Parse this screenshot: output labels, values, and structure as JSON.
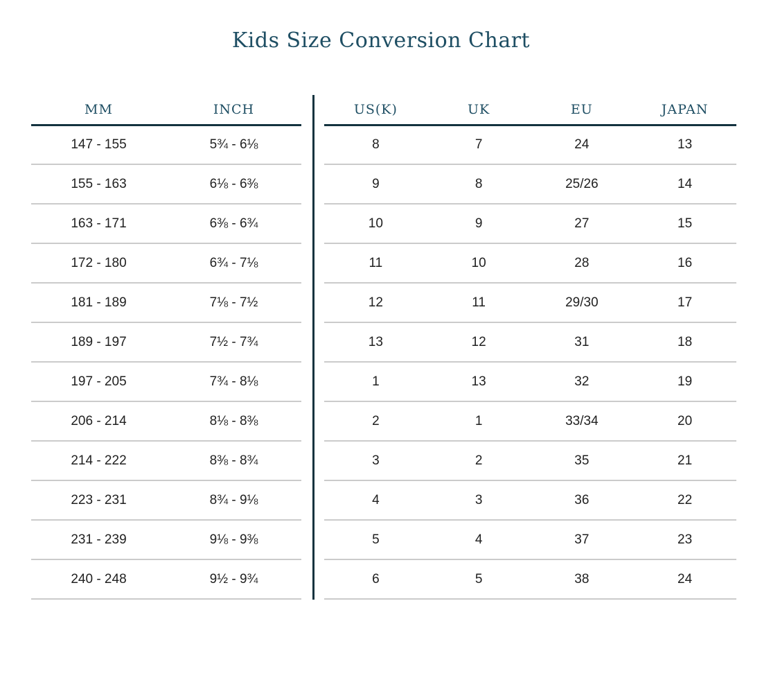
{
  "title": "Kids Size Conversion Chart",
  "colors": {
    "heading": "#1E4E63",
    "rule": "#14333F",
    "separator": "#CBCBCB",
    "text": "#212121",
    "background": "#FFFFFF"
  },
  "left_table": {
    "headers": [
      "MM",
      "INCH"
    ],
    "rows": [
      [
        "147 - 155",
        "5¾ - 6⅛"
      ],
      [
        "155 - 163",
        "6⅛ - 6⅜"
      ],
      [
        "163 - 171",
        "6⅜ - 6¾"
      ],
      [
        "172 - 180",
        "6¾ - 7⅛"
      ],
      [
        "181 - 189",
        "7⅛ - 7½"
      ],
      [
        "189 - 197",
        "7½ - 7¾"
      ],
      [
        "197 - 205",
        "7¾ - 8⅛"
      ],
      [
        "206 - 214",
        "8⅛ - 8⅜"
      ],
      [
        "214 - 222",
        "8⅜ - 8¾"
      ],
      [
        "223 - 231",
        "8¾ - 9⅛"
      ],
      [
        "231 - 239",
        "9⅛ - 9⅜"
      ],
      [
        "240 - 248",
        "9½ - 9¾"
      ]
    ]
  },
  "right_table": {
    "headers": [
      "US(K)",
      "UK",
      "EU",
      "JAPAN"
    ],
    "rows": [
      [
        "8",
        "7",
        "24",
        "13"
      ],
      [
        "9",
        "8",
        "25/26",
        "14"
      ],
      [
        "10",
        "9",
        "27",
        "15"
      ],
      [
        "11",
        "10",
        "28",
        "16"
      ],
      [
        "12",
        "11",
        "29/30",
        "17"
      ],
      [
        "13",
        "12",
        "31",
        "18"
      ],
      [
        "1",
        "13",
        "32",
        "19"
      ],
      [
        "2",
        "1",
        "33/34",
        "20"
      ],
      [
        "3",
        "2",
        "35",
        "21"
      ],
      [
        "4",
        "3",
        "36",
        "22"
      ],
      [
        "5",
        "4",
        "37",
        "23"
      ],
      [
        "6",
        "5",
        "38",
        "24"
      ]
    ]
  },
  "chart_data": {
    "type": "table",
    "title": "Kids Size Conversion Chart",
    "columns": [
      "MM",
      "INCH",
      "US(K)",
      "UK",
      "EU",
      "JAPAN"
    ],
    "rows": [
      [
        "147 - 155",
        "5¾ - 6⅛",
        "8",
        "7",
        "24",
        "13"
      ],
      [
        "155 - 163",
        "6⅛ - 6⅜",
        "9",
        "8",
        "25/26",
        "14"
      ],
      [
        "163 - 171",
        "6⅜ - 6¾",
        "10",
        "9",
        "27",
        "15"
      ],
      [
        "172 - 180",
        "6¾ - 7⅛",
        "11",
        "10",
        "28",
        "16"
      ],
      [
        "181 - 189",
        "7⅛ - 7½",
        "12",
        "11",
        "29/30",
        "17"
      ],
      [
        "189 - 197",
        "7½ - 7¾",
        "13",
        "12",
        "31",
        "18"
      ],
      [
        "197 - 205",
        "7¾ - 8⅛",
        "1",
        "13",
        "32",
        "19"
      ],
      [
        "206 - 214",
        "8⅛ - 8⅜",
        "2",
        "1",
        "33/34",
        "20"
      ],
      [
        "214 - 222",
        "8⅜ - 8¾",
        "3",
        "2",
        "35",
        "21"
      ],
      [
        "223 - 231",
        "8¾ - 9⅛",
        "4",
        "3",
        "36",
        "22"
      ],
      [
        "231 - 239",
        "9⅛ - 9⅜",
        "5",
        "4",
        "37",
        "23"
      ],
      [
        "240 - 248",
        "9½ - 9¾",
        "6",
        "5",
        "38",
        "24"
      ]
    ]
  }
}
